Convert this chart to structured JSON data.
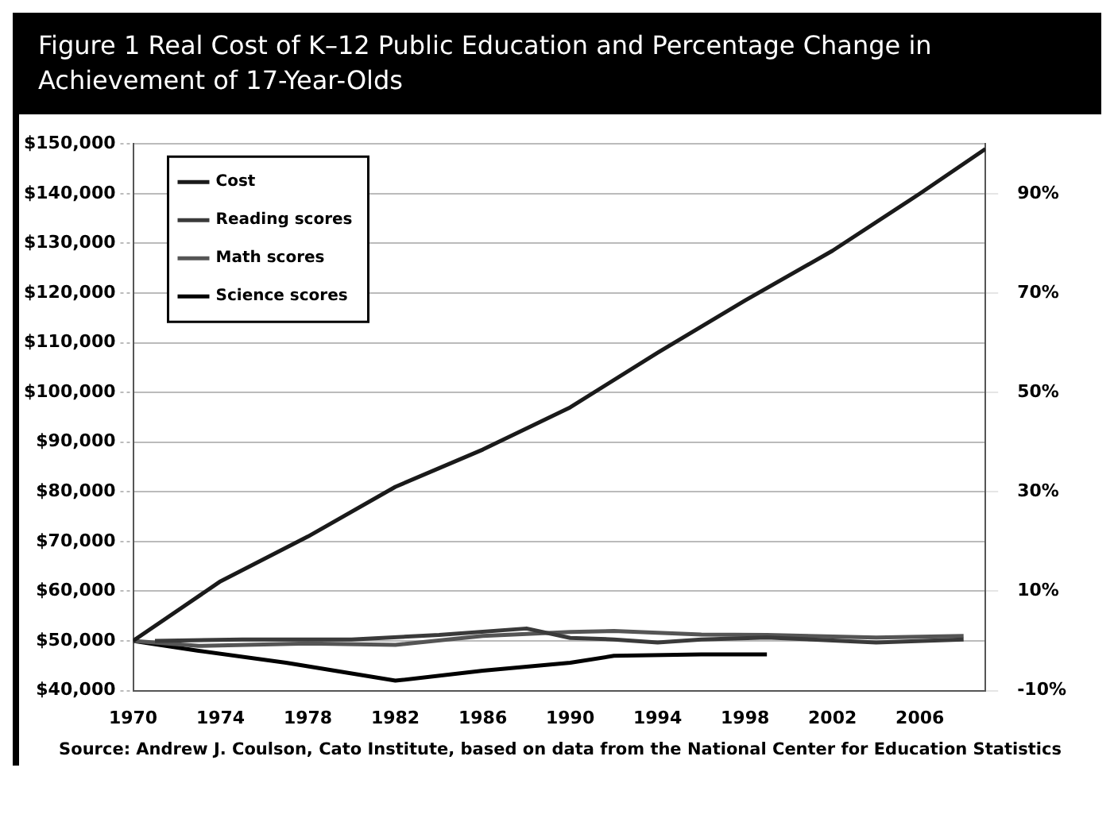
{
  "chart_data": {
    "type": "line",
    "title": "Figure 1 Real Cost of K–12 Public Education and Percentage Change in Achievement of 17-Year-Olds",
    "xlim": [
      1970,
      2009
    ],
    "xticks": [
      1970,
      1974,
      1978,
      1982,
      1986,
      1990,
      1994,
      1998,
      2002,
      2006
    ],
    "ylim": [
      40000,
      150000
    ],
    "yticks": [
      {
        "value": 40000,
        "label": "$40,000"
      },
      {
        "value": 50000,
        "label": "$50,000"
      },
      {
        "value": 60000,
        "label": "$60,000"
      },
      {
        "value": 70000,
        "label": "$70,000"
      },
      {
        "value": 80000,
        "label": "$80,000"
      },
      {
        "value": 90000,
        "label": "$90,000"
      },
      {
        "value": 100000,
        "label": "$100,000"
      },
      {
        "value": 110000,
        "label": "$110,000"
      },
      {
        "value": 120000,
        "label": "$120,000"
      },
      {
        "value": 130000,
        "label": "$130,000"
      },
      {
        "value": 140000,
        "label": "$140,000"
      },
      {
        "value": 150000,
        "label": "$150,000"
      }
    ],
    "y2lim": [
      -10,
      100
    ],
    "y2ticks": [
      {
        "value": -10,
        "label": "-10%"
      },
      {
        "value": 10,
        "label": "10%"
      },
      {
        "value": 30,
        "label": "30%"
      },
      {
        "value": 50,
        "label": "50%"
      },
      {
        "value": 70,
        "label": "70%"
      },
      {
        "value": 90,
        "label": "90%"
      }
    ],
    "series": [
      {
        "name": "Cost",
        "color": "#1a1a1a",
        "x": [
          1970,
          1974,
          1978,
          1982,
          1986,
          1990,
          1994,
          1998,
          2002,
          2006,
          2009
        ],
        "values": [
          50000,
          62000,
          71000,
          81000,
          88500,
          97000,
          108000,
          118500,
          128500,
          140000,
          149000
        ]
      },
      {
        "name": "Reading scores",
        "color": "#3a3a3a",
        "axis": "y2",
        "x": [
          1971,
          1975,
          1980,
          1984,
          1988,
          1990,
          1992,
          1994,
          1996,
          1999,
          2004,
          2008
        ],
        "values": [
          0,
          0.3,
          0.3,
          1.2,
          2.5,
          0.6,
          0.3,
          -0.3,
          0.3,
          0.7,
          -0.3,
          0.3
        ]
      },
      {
        "name": "Math scores",
        "color": "#555555",
        "axis": "y2",
        "x": [
          1970,
          1973,
          1978,
          1982,
          1986,
          1990,
          1992,
          1996,
          1999,
          2004,
          2008
        ],
        "values": [
          0,
          -1,
          -0.5,
          -0.8,
          1,
          1.8,
          2,
          1.3,
          1.2,
          0.7,
          1
        ]
      },
      {
        "name": "Science scores",
        "color": "#000000",
        "axis": "y2",
        "x": [
          1970,
          1973,
          1977,
          1982,
          1986,
          1990,
          1992,
          1996,
          1999
        ],
        "values": [
          0,
          -2,
          -4.4,
          -8,
          -6,
          -4.4,
          -3,
          -2.7,
          -2.7
        ]
      }
    ],
    "grid": "y",
    "legend": "top left",
    "marker": "none",
    "line_style": "solid",
    "annotations": [
      "Source: Andrew J. Coulson, Cato Institute, based on data from the National Center for Education Statistics"
    ]
  }
}
